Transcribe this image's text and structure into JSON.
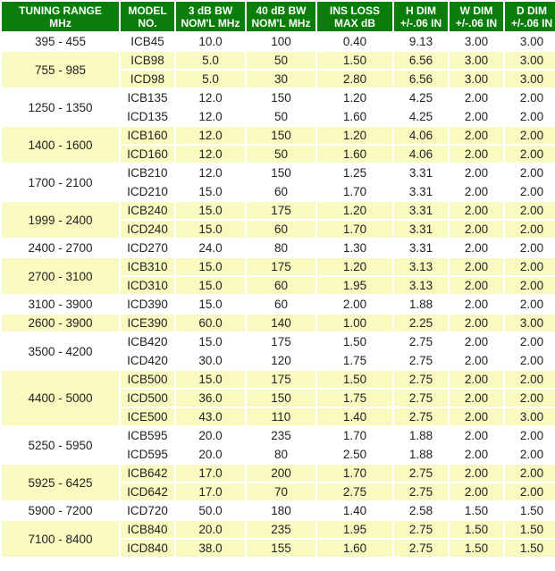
{
  "headers": [
    [
      "TUNING RANGE",
      "MHz"
    ],
    [
      "MODEL",
      "NO."
    ],
    [
      "3 dB BW",
      "NOM'L MHz"
    ],
    [
      "40 dB BW",
      "NOM'L MHz"
    ],
    [
      "INS LOSS",
      "MAX dB"
    ],
    [
      "H DIM",
      "+/-.06 IN"
    ],
    [
      "W DIM",
      "+/-.06 IN"
    ],
    [
      "D DIM",
      "+/-.06 IN"
    ]
  ],
  "groups": [
    {
      "range": "395 - 455",
      "rows": [
        [
          "ICB45",
          "10.0",
          "100",
          "0.40",
          "9.13",
          "3.00",
          "3.00"
        ]
      ]
    },
    {
      "range": "755 - 985",
      "rows": [
        [
          "ICB98",
          "5.0",
          "50",
          "1.50",
          "6.56",
          "3.00",
          "3.00"
        ],
        [
          "ICD98",
          "5.0",
          "30",
          "2.80",
          "6.56",
          "3.00",
          "3.00"
        ]
      ]
    },
    {
      "range": "1250 - 1350",
      "rows": [
        [
          "ICB135",
          "12.0",
          "150",
          "1.20",
          "4.25",
          "2.00",
          "2.00"
        ],
        [
          "ICD135",
          "12.0",
          "50",
          "1.60",
          "4.25",
          "2.00",
          "2.00"
        ]
      ]
    },
    {
      "range": "1400 - 1600",
      "rows": [
        [
          "ICB160",
          "12.0",
          "150",
          "1.20",
          "4.06",
          "2.00",
          "2.00"
        ],
        [
          "ICD160",
          "12.0",
          "50",
          "1.60",
          "4.06",
          "2.00",
          "2.00"
        ]
      ]
    },
    {
      "range": "1700 - 2100",
      "rows": [
        [
          "ICB210",
          "12.0",
          "150",
          "1.25",
          "3.31",
          "2.00",
          "2.00"
        ],
        [
          "ICD210",
          "15.0",
          "60",
          "1.70",
          "3.31",
          "2.00",
          "2.00"
        ]
      ]
    },
    {
      "range": "1999 - 2400",
      "rows": [
        [
          "ICB240",
          "15.0",
          "175",
          "1.20",
          "3.31",
          "2.00",
          "2.00"
        ],
        [
          "ICD240",
          "15.0",
          "60",
          "1.70",
          "3.31",
          "2.00",
          "2.00"
        ]
      ]
    },
    {
      "range": "2400 - 2700",
      "rows": [
        [
          "ICD270",
          "24.0",
          "80",
          "1.30",
          "3.31",
          "2.00",
          "2.00"
        ]
      ]
    },
    {
      "range": "2700 - 3100",
      "rows": [
        [
          "ICB310",
          "15.0",
          "175",
          "1.20",
          "3.13",
          "2.00",
          "2.00"
        ],
        [
          "ICD310",
          "15.0",
          "60",
          "1.95",
          "3.13",
          "2.00",
          "2.00"
        ]
      ]
    },
    {
      "range": "3100 - 3900",
      "rows": [
        [
          "ICD390",
          "15.0",
          "60",
          "2.00",
          "1.88",
          "2.00",
          "2.00"
        ]
      ]
    },
    {
      "range": "2600 - 3900",
      "rows": [
        [
          "ICE390",
          "60.0",
          "140",
          "1.00",
          "2.25",
          "2.00",
          "3.00"
        ]
      ]
    },
    {
      "range": "3500 - 4200",
      "rows": [
        [
          "ICB420",
          "15.0",
          "175",
          "1.50",
          "2.75",
          "2.00",
          "2.00"
        ],
        [
          "ICD420",
          "30.0",
          "120",
          "1.75",
          "2.75",
          "2.00",
          "2.00"
        ]
      ]
    },
    {
      "range": "4400 - 5000",
      "rows": [
        [
          "ICB500",
          "15.0",
          "175",
          "1.50",
          "2.75",
          "2.00",
          "2.00"
        ],
        [
          "ICD500",
          "36.0",
          "150",
          "1.75",
          "2.75",
          "2.00",
          "2.00"
        ],
        [
          "ICE500",
          "43.0",
          "110",
          "1.40",
          "2.75",
          "2.00",
          "3.00"
        ]
      ]
    },
    {
      "range": "5250 - 5950",
      "rows": [
        [
          "ICB595",
          "20.0",
          "235",
          "1.70",
          "1.88",
          "2.00",
          "2.00"
        ],
        [
          "ICD595",
          "20.0",
          "80",
          "2.50",
          "1.88",
          "2.00",
          "2.00"
        ]
      ]
    },
    {
      "range": "5925 - 6425",
      "rows": [
        [
          "ICB642",
          "17.0",
          "200",
          "1.70",
          "2.75",
          "2.00",
          "2.00"
        ],
        [
          "ICD642",
          "17.0",
          "70",
          "2.75",
          "2.75",
          "2.00",
          "2.00"
        ]
      ]
    },
    {
      "range": "5900 - 7200",
      "rows": [
        [
          "ICD720",
          "50.0",
          "180",
          "1.40",
          "2.58",
          "1.50",
          "1.50"
        ]
      ]
    },
    {
      "range": "7100 - 8400",
      "rows": [
        [
          "ICB840",
          "20.0",
          "235",
          "1.95",
          "2.75",
          "1.50",
          "1.50"
        ],
        [
          "ICD840",
          "38.0",
          "155",
          "1.60",
          "2.75",
          "1.50",
          "1.50"
        ]
      ]
    }
  ],
  "colors": {
    "header_bg": "#0a7d0a",
    "header_text": "#ffffff",
    "alt_row": "#fafac0",
    "row": "#ffffff"
  }
}
